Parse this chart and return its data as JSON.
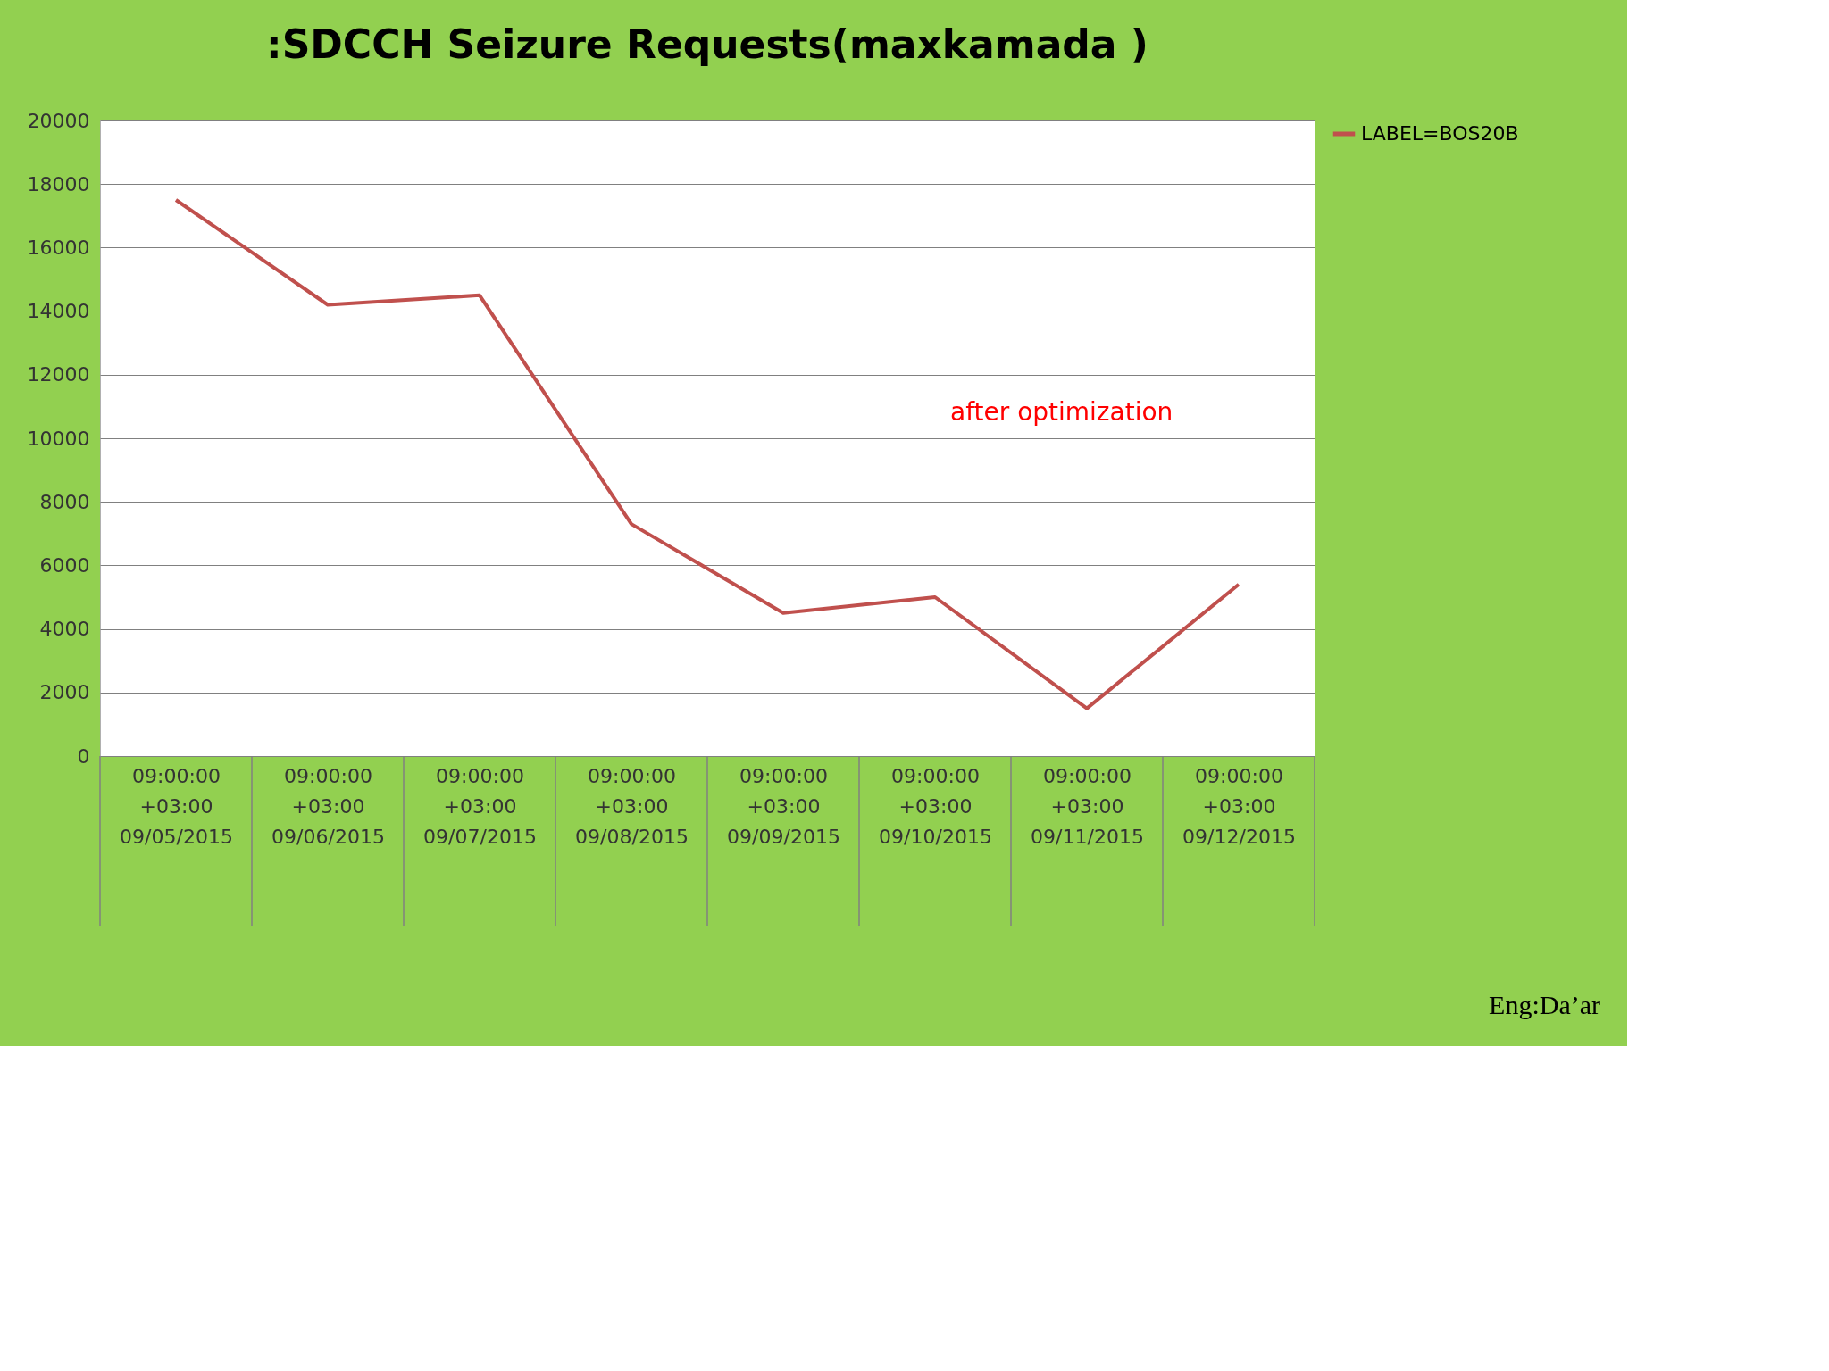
{
  "chart_data": {
    "type": "line",
    "title": ":SDCCH Seizure Requests(maxkamada )",
    "categories": [
      "09:00:00\n+03:00\n\n09/05/2015",
      "09:00:00\n+03:00\n\n09/06/2015",
      "09:00:00\n+03:00\n\n09/07/2015",
      "09:00:00\n+03:00\n\n09/08/2015",
      "09:00:00\n+03:00\n\n09/09/2015",
      "09:00:00\n+03:00\n\n09/10/2015",
      "09:00:00\n+03:00\n\n09/11/2015",
      "09:00:00\n+03:00\n\n09/12/2015"
    ],
    "series": [
      {
        "name": "LABEL=BOS20B",
        "color": "#c0504d",
        "values": [
          17500,
          14200,
          14500,
          7300,
          4500,
          5000,
          1500,
          5400
        ]
      }
    ],
    "ylim": [
      0,
      20000
    ],
    "yticks": [
      0,
      2000,
      4000,
      6000,
      8000,
      10000,
      12000,
      14000,
      16000,
      18000,
      20000
    ],
    "grid": "y",
    "legend": "right",
    "marker": "none",
    "line_style": "solid",
    "annotations": [
      "after optimization",
      "Eng:Da’ar"
    ]
  }
}
